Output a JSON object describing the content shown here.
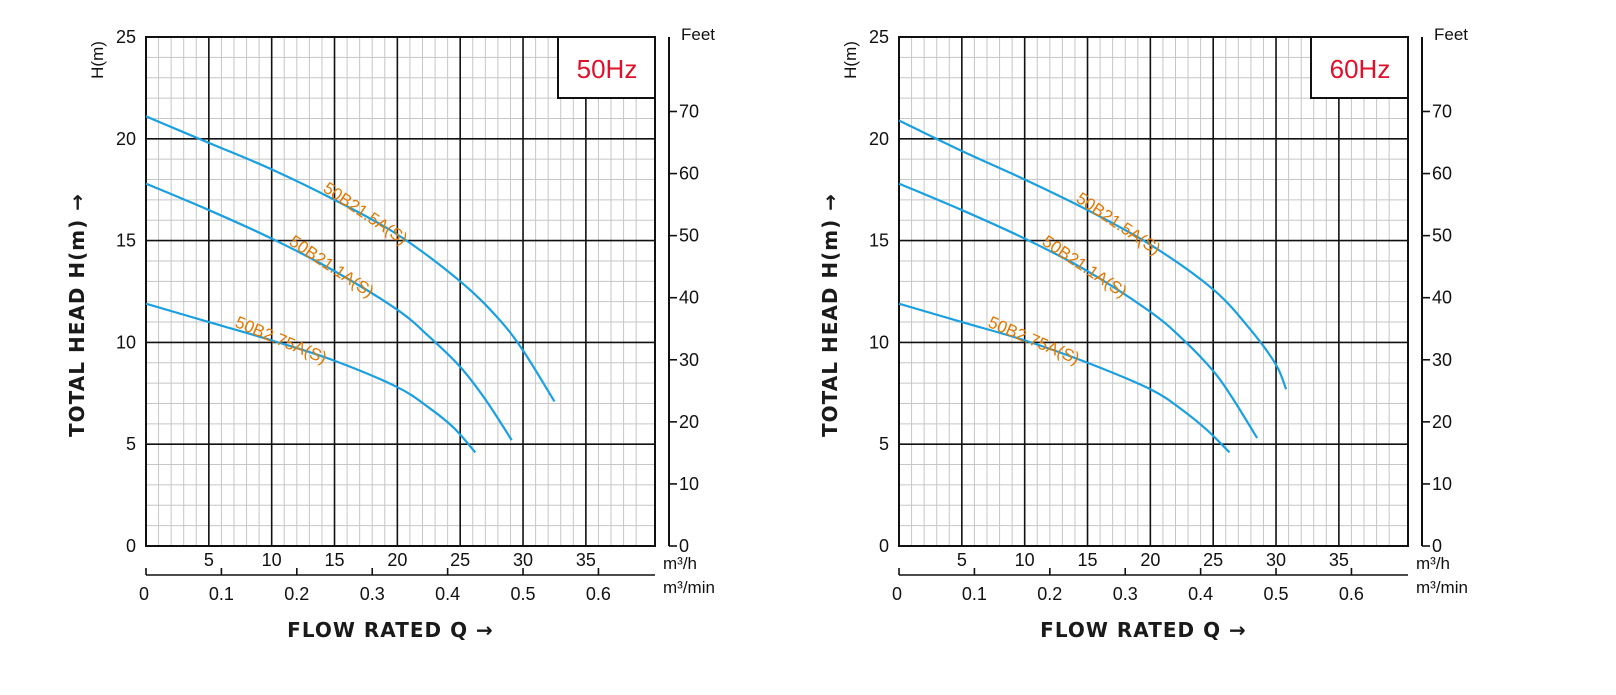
{
  "chart_data": [
    {
      "type": "line",
      "frequency_label": "50Hz",
      "ylabel": "TOTAL HEAD H(m) →",
      "ylabel_unit": "H(m)",
      "xlabel": "FLOW RATED Q →",
      "y2_label": "Feet",
      "x_unit_primary": "m³/h",
      "x_unit_secondary": "m³/min",
      "xlim": [
        0,
        40.5
      ],
      "ylim": [
        0,
        25
      ],
      "y2lim": [
        0,
        82
      ],
      "x_ticks": [
        5,
        10,
        15,
        20,
        25,
        30,
        35
      ],
      "x2_ticks": [
        "0",
        "0.1",
        "0.2",
        "0.3",
        "0.4",
        "0.5",
        "0.6"
      ],
      "y_ticks": [
        0,
        5,
        10,
        15,
        20,
        25
      ],
      "y2_ticks": [
        0,
        10,
        20,
        30,
        40,
        50,
        60,
        70
      ],
      "grid": true,
      "series": [
        {
          "name": "50B21.5A(S)",
          "color": "#1aa0e0",
          "x": [
            0,
            5,
            10,
            15,
            20,
            25,
            28,
            30,
            32.5
          ],
          "y": [
            21.1,
            19.8,
            18.5,
            17.0,
            15.3,
            13.0,
            11.2,
            9.6,
            7.1
          ]
        },
        {
          "name": "50B21.1A(S)",
          "color": "#1aa0e0",
          "x": [
            0,
            5,
            10,
            15,
            20,
            22.5,
            25,
            27,
            29.1
          ],
          "y": [
            17.8,
            16.5,
            15.1,
            13.5,
            11.6,
            10.3,
            8.8,
            7.2,
            5.2
          ]
        },
        {
          "name": "50B2.75A(S)",
          "color": "#1aa0e0",
          "x": [
            0,
            5,
            10,
            15,
            20,
            22.5,
            24.5,
            26.2
          ],
          "y": [
            11.9,
            11.0,
            10.1,
            9.1,
            7.8,
            6.8,
            5.8,
            4.6
          ]
        }
      ]
    },
    {
      "type": "line",
      "frequency_label": "60Hz",
      "ylabel": "TOTAL HEAD H(m) →",
      "ylabel_unit": "H(m)",
      "xlabel": "FLOW RATED Q →",
      "y2_label": "Feet",
      "x_unit_primary": "m³/h",
      "x_unit_secondary": "m³/min",
      "xlim": [
        0,
        40.5
      ],
      "ylim": [
        0,
        25
      ],
      "y2lim": [
        0,
        82
      ],
      "x_ticks": [
        5,
        10,
        15,
        20,
        25,
        30,
        35
      ],
      "x2_ticks": [
        "0",
        "0.1",
        "0.2",
        "0.3",
        "0.4",
        "0.5",
        "0.6"
      ],
      "y_ticks": [
        0,
        5,
        10,
        15,
        20,
        25
      ],
      "y2_ticks": [
        0,
        10,
        20,
        30,
        40,
        50,
        60,
        70
      ],
      "grid": true,
      "series": [
        {
          "name": "50B21.5A(S)",
          "color": "#1aa0e0",
          "x": [
            0,
            5,
            10,
            15,
            20,
            25,
            28,
            30,
            30.8
          ],
          "y": [
            20.9,
            19.4,
            18.0,
            16.5,
            14.8,
            12.6,
            10.6,
            8.9,
            7.7
          ]
        },
        {
          "name": "50B21.1A(S)",
          "color": "#1aa0e0",
          "x": [
            0,
            5,
            10,
            15,
            20,
            22.5,
            25,
            26.5,
            28.5
          ],
          "y": [
            17.8,
            16.5,
            15.1,
            13.5,
            11.5,
            10.2,
            8.6,
            7.3,
            5.3
          ]
        },
        {
          "name": "50B2.75A(S)",
          "color": "#1aa0e0",
          "x": [
            0,
            5,
            10,
            15,
            20,
            22.5,
            24.5,
            26.3
          ],
          "y": [
            11.9,
            11.0,
            10.1,
            9.0,
            7.7,
            6.7,
            5.7,
            4.6
          ]
        }
      ]
    }
  ]
}
